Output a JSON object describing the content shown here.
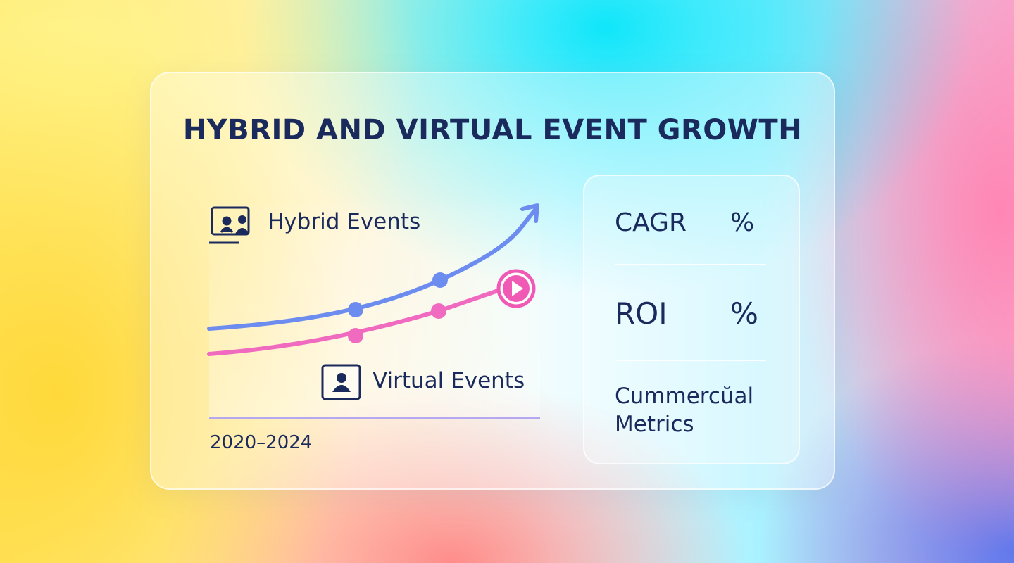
{
  "title": "HYBRID AND VIRTUAL EVENT GROWTH",
  "chart": {
    "legend": [
      "Hybrid Events",
      "Virtual Events"
    ],
    "period": "2020–2024"
  },
  "metrics": [
    {
      "label": "CAGR",
      "unit": "%"
    },
    {
      "label": "ROI",
      "unit": "%"
    }
  ],
  "footer": "Cummercŭal Metrics"
}
